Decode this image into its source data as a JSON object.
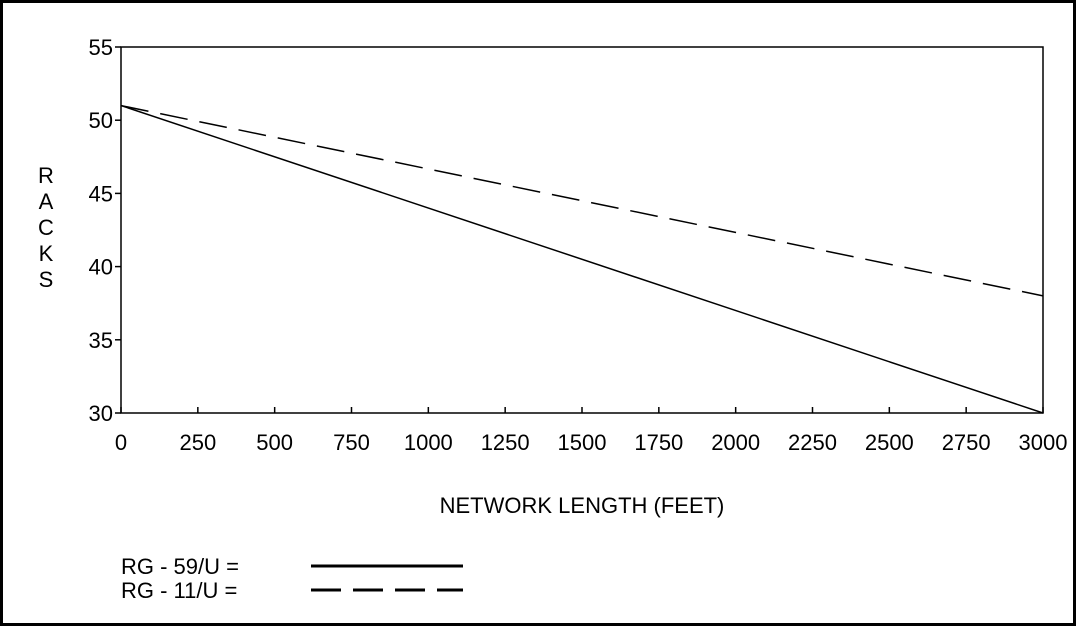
{
  "chart_data": {
    "type": "line",
    "title": "",
    "xlabel": "NETWORK LENGTH (FEET)",
    "ylabel": "RACKS",
    "xlim": [
      0,
      3000
    ],
    "ylim": [
      30,
      55
    ],
    "x_ticks": [
      0,
      250,
      500,
      750,
      1000,
      1250,
      1500,
      1750,
      2000,
      2250,
      2500,
      2750,
      3000
    ],
    "y_ticks": [
      30,
      35,
      40,
      45,
      50,
      55
    ],
    "grid": false,
    "legend_position": "bottom-left",
    "series": [
      {
        "name": "RG - 59/U =",
        "style": "solid",
        "color": "#000000",
        "x": [
          0,
          3000
        ],
        "y": [
          51,
          30
        ]
      },
      {
        "name": "RG - 11/U =",
        "style": "dashed",
        "color": "#000000",
        "x": [
          0,
          3000
        ],
        "y": [
          51,
          38
        ]
      }
    ]
  }
}
